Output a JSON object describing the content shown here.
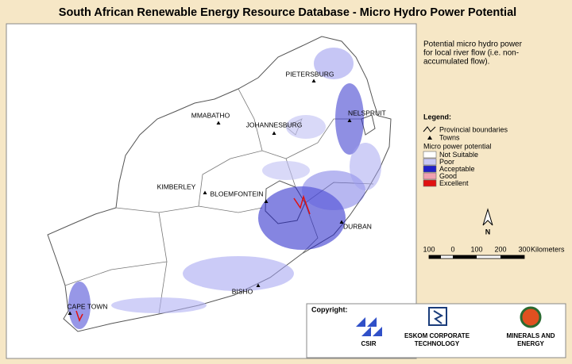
{
  "header": {
    "title": "South African Renewable Energy Resource Database - Micro Hydro Power Potential"
  },
  "description": [
    "Potential micro hydro power",
    "for local river flow (i.e. non-",
    "accumulated flow)."
  ],
  "legend": {
    "title": "Legend:",
    "boundaries": "Provincial boundaries",
    "towns": "Towns",
    "classes_title": "Micro power potential",
    "classes": [
      {
        "label": "Not Suitable",
        "color": "#ffffff"
      },
      {
        "label": "Poor",
        "color": "#c8c8f4"
      },
      {
        "label": "Acceptable",
        "color": "#2020c8"
      },
      {
        "label": "Good",
        "color": "#f0a0b0"
      },
      {
        "label": "Excellent",
        "color": "#e01010"
      }
    ]
  },
  "north": "N",
  "scale": {
    "labels": [
      "100",
      "0",
      "100",
      "200",
      "300"
    ],
    "unit": "Kilometers"
  },
  "cities": [
    "PIETERSBURG",
    "MMABATHO",
    "JOHANNESBURG",
    "NELSPRUIT",
    "KIMBERLEY",
    "BLOEMFONTEIN",
    "DURBAN",
    "BISHO",
    "CAPE TOWN"
  ],
  "copyright": {
    "title": "Copyright:",
    "logos": [
      "CSIR",
      "ESKOM CORPORATE TECHNOLOGY",
      "MINERALS AND ENERGY"
    ]
  }
}
